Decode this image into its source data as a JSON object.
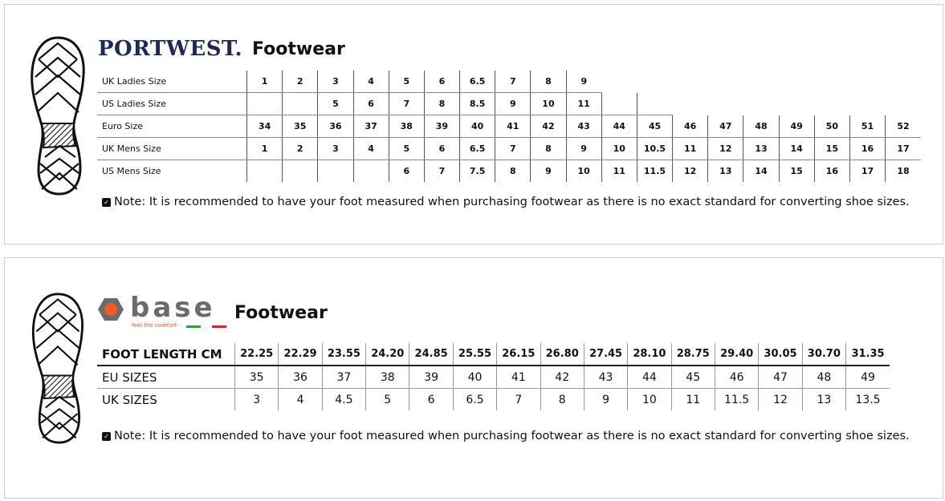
{
  "portwest": {
    "brand": "PORTWEST.",
    "title": "Footwear",
    "rows": [
      {
        "label": "UK Ladies Size",
        "values": [
          "1",
          "2",
          "3",
          "4",
          "5",
          "6",
          "6.5",
          "7",
          "8",
          "9"
        ]
      },
      {
        "label": "US Ladies Size",
        "values": [
          "",
          "",
          "5",
          "6",
          "7",
          "8",
          "8.5",
          "9",
          "10",
          "11",
          "",
          ""
        ]
      },
      {
        "label": "Euro Size",
        "values": [
          "34",
          "35",
          "36",
          "37",
          "38",
          "39",
          "40",
          "41",
          "42",
          "43",
          "44",
          "45",
          "46",
          "47",
          "48",
          "49",
          "50",
          "51",
          "52"
        ]
      },
      {
        "label": "UK Mens Size",
        "values": [
          "1",
          "2",
          "3",
          "4",
          "5",
          "6",
          "6.5",
          "7",
          "8",
          "9",
          "10",
          "10.5",
          "11",
          "12",
          "13",
          "14",
          "15",
          "16",
          "17"
        ]
      },
      {
        "label": "US Mens Size",
        "values": [
          "",
          "",
          "",
          "",
          "6",
          "7",
          "7.5",
          "8",
          "9",
          "10",
          "11",
          "11.5",
          "12",
          "13",
          "14",
          "15",
          "16",
          "17",
          "18"
        ]
      }
    ],
    "note": "Note: It is recommended to have your foot measured when purchasing footwear as there is no exact standard for converting shoe sizes."
  },
  "base": {
    "brand": "base",
    "tagline": "feel the comfort",
    "title": "Footwear",
    "colors": {
      "logo_gray": "#6b6b6b",
      "logo_orange": "#f15a22",
      "green": "#2e9e3e",
      "red": "#e2202a"
    },
    "rows": [
      {
        "label": "FOOT LENGTH CM",
        "values": [
          "22.25",
          "22.29",
          "23.55",
          "24.20",
          "24.85",
          "25.55",
          "26.15",
          "26.80",
          "27.45",
          "28.10",
          "28.75",
          "29.40",
          "30.05",
          "30.70",
          "31.35"
        ]
      },
      {
        "label": "EU SIZES",
        "values": [
          "35",
          "36",
          "37",
          "38",
          "39",
          "40",
          "41",
          "42",
          "43",
          "44",
          "45",
          "46",
          "47",
          "48",
          "49"
        ]
      },
      {
        "label": "UK SIZES",
        "values": [
          "3",
          "4",
          "4.5",
          "5",
          "6",
          "6.5",
          "7",
          "8",
          "9",
          "10",
          "11",
          "11.5",
          "12",
          "13",
          "13.5"
        ]
      }
    ],
    "note": "Note: It is recommended to have your foot measured when purchasing footwear as there is no exact standard for converting shoe sizes."
  }
}
